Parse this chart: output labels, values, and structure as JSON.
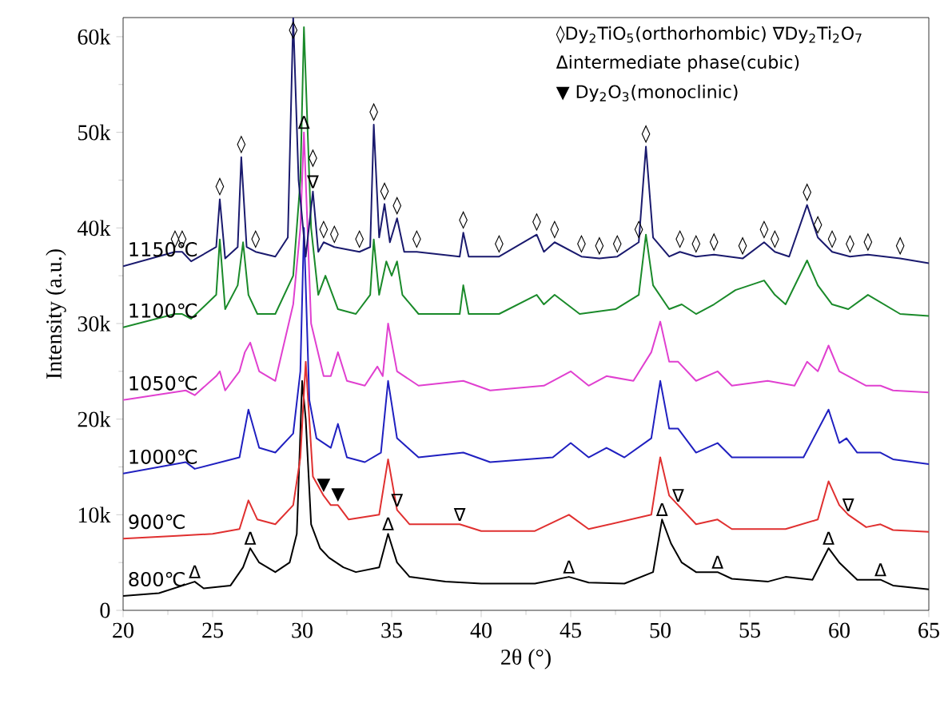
{
  "chart_data": {
    "type": "line",
    "xlabel": "2θ (°)",
    "ylabel": "Intensity (a.u.)",
    "xlim": [
      20,
      65
    ],
    "xticks": [
      20,
      25,
      30,
      35,
      40,
      45,
      50,
      55,
      60,
      65
    ],
    "ylim": [
      0,
      62000
    ],
    "yticks": [
      0,
      {
        "value": 10000,
        "label": "10k"
      },
      {
        "value": 20000,
        "label": "20k"
      },
      {
        "value": 30000,
        "label": "30k"
      },
      {
        "value": 40000,
        "label": "40k"
      },
      {
        "value": 50000,
        "label": "50k"
      },
      {
        "value": 60000,
        "label": "60k"
      }
    ],
    "grid": false,
    "legend": false,
    "marker": "none",
    "line_style": "solid",
    "series": [
      {
        "name": "800℃",
        "color": "#000000",
        "x": [
          20,
          22,
          24,
          24.5,
          26,
          26.7,
          27.1,
          27.6,
          28.5,
          29.3,
          29.7,
          30.0,
          30.2,
          30.5,
          31,
          31.5,
          32.3,
          33,
          34.3,
          34.8,
          35.3,
          36,
          38,
          40,
          43,
          44.9,
          46,
          48,
          49.6,
          50.1,
          50.6,
          51.2,
          52,
          53.2,
          54,
          56,
          57,
          58.5,
          59.4,
          60,
          61,
          62.3,
          63,
          65
        ],
        "values": [
          1500,
          1800,
          3000,
          2300,
          2600,
          4500,
          6500,
          5000,
          4000,
          5000,
          8000,
          24000,
          20000,
          9000,
          6500,
          5500,
          4500,
          4000,
          4500,
          8000,
          5000,
          3500,
          3000,
          2800,
          2800,
          3500,
          2900,
          2800,
          4000,
          9500,
          7000,
          5000,
          4000,
          4000,
          3300,
          3000,
          3500,
          3200,
          6500,
          5000,
          3200,
          3200,
          2600,
          2200
        ]
      },
      {
        "name": "900℃",
        "color": "#e03030",
        "x": [
          20,
          23,
          25,
          26.5,
          27,
          27.5,
          28.5,
          29.5,
          29.9,
          30.2,
          30.6,
          31.2,
          31.6,
          32,
          32.6,
          34.3,
          34.8,
          35.3,
          36,
          38.8,
          40,
          43,
          44.9,
          46,
          49.5,
          50,
          50.5,
          51,
          52,
          53.2,
          54,
          57,
          58.8,
          59.4,
          60,
          60.5,
          61.5,
          62.3,
          63,
          65
        ],
        "values": [
          7500,
          7800,
          8000,
          8500,
          11500,
          9500,
          9000,
          11000,
          16000,
          26000,
          14000,
          12000,
          11000,
          11000,
          9500,
          10000,
          15800,
          10500,
          9000,
          9000,
          8300,
          8300,
          10000,
          8500,
          10000,
          16000,
          12000,
          11000,
          9000,
          9500,
          8500,
          8500,
          9500,
          13500,
          11000,
          10000,
          8700,
          9000,
          8400,
          8200
        ]
      },
      {
        "name": "1000℃",
        "color": "#2020c0",
        "x": [
          20,
          23.5,
          24,
          26.5,
          27,
          27.6,
          28.5,
          29.5,
          29.9,
          30.1,
          30.4,
          30.8,
          31.2,
          31.6,
          32,
          32.5,
          33.5,
          34.4,
          34.8,
          35.3,
          36.5,
          39,
          40.5,
          44,
          45,
          46,
          47,
          48,
          49.5,
          50,
          50.5,
          51,
          52,
          53.2,
          54,
          58,
          59.4,
          60,
          60.4,
          61,
          62.3,
          63,
          65
        ],
        "values": [
          14300,
          15500,
          14800,
          16000,
          21000,
          17000,
          16500,
          18500,
          25000,
          40000,
          22000,
          18000,
          17500,
          17000,
          19500,
          16000,
          15500,
          16500,
          24000,
          18000,
          16000,
          16500,
          15500,
          16000,
          17500,
          16000,
          17000,
          16000,
          18000,
          24000,
          19000,
          19000,
          16500,
          17500,
          16000,
          16000,
          21000,
          17500,
          18000,
          16500,
          16500,
          15800,
          15300
        ]
      },
      {
        "name": "1050℃",
        "color": "#e040d0",
        "x": [
          20,
          23.5,
          24,
          25.2,
          25.4,
          25.7,
          26.5,
          26.8,
          27.1,
          27.6,
          28.5,
          29.5,
          29.9,
          30.1,
          30.5,
          31.2,
          31.6,
          32,
          32.5,
          33.5,
          34.2,
          34.5,
          34.8,
          35.3,
          36.5,
          39,
          40.5,
          43.5,
          45,
          46,
          47,
          48.5,
          49.5,
          50,
          50.5,
          51,
          52,
          53.2,
          54,
          56,
          57.5,
          58.2,
          58.8,
          59.4,
          60,
          60.5,
          61.5,
          62.3,
          63,
          65
        ],
        "values": [
          22000,
          23000,
          22500,
          24500,
          25000,
          23000,
          25000,
          27000,
          28000,
          25000,
          24000,
          32000,
          40000,
          50000,
          30000,
          24500,
          24500,
          27000,
          24000,
          23500,
          25500,
          24500,
          30000,
          25000,
          23500,
          24000,
          23000,
          23500,
          25000,
          23500,
          24500,
          24000,
          27000,
          30200,
          26000,
          26000,
          24000,
          25000,
          23500,
          24000,
          23500,
          26000,
          25000,
          27700,
          25000,
          24500,
          23500,
          23500,
          23000,
          22800
        ]
      },
      {
        "name": "1100℃",
        "color": "#1a8a2a",
        "x": [
          20,
          22.9,
          23.3,
          23.8,
          25.2,
          25.4,
          25.7,
          26.4,
          26.7,
          27,
          27.5,
          28.5,
          29.5,
          29.9,
          30.1,
          30.5,
          30.9,
          31.3,
          32,
          33,
          33.8,
          34.0,
          34.3,
          34.7,
          35.0,
          35.3,
          35.6,
          36.5,
          38.8,
          39,
          39.3,
          41,
          43.1,
          43.5,
          44.1,
          45.5,
          47.5,
          48.8,
          49.2,
          49.6,
          50.5,
          51.2,
          52,
          53,
          54.2,
          55.8,
          56.4,
          57,
          58.2,
          58.8,
          59.6,
          60.5,
          61.6,
          63.4,
          65
        ],
        "values": [
          29600,
          31000,
          31000,
          30500,
          33000,
          38800,
          31500,
          34000,
          38500,
          33000,
          31000,
          31000,
          35000,
          45000,
          61000,
          40000,
          33000,
          35000,
          31500,
          31000,
          33000,
          38800,
          33000,
          36500,
          35000,
          36500,
          33000,
          31000,
          31000,
          34000,
          31000,
          31000,
          33000,
          32000,
          33000,
          31000,
          31500,
          33000,
          39300,
          34000,
          31500,
          32000,
          31000,
          32000,
          33500,
          34500,
          33000,
          32000,
          36600,
          34000,
          32000,
          31500,
          33000,
          31000,
          30800
        ]
      },
      {
        "name": "1150℃",
        "color": "#1a1a6e",
        "x": [
          20,
          22.9,
          23.3,
          23.8,
          25.2,
          25.4,
          25.7,
          26.4,
          26.6,
          26.9,
          27.4,
          28.5,
          29.2,
          29.5,
          29.8,
          30.2,
          30.6,
          30.9,
          31.2,
          31.8,
          33.2,
          33.8,
          34.0,
          34.3,
          34.6,
          34.9,
          35.3,
          35.7,
          36.4,
          38.8,
          39.0,
          39.3,
          41.0,
          43.1,
          43.5,
          44.1,
          45.6,
          46.6,
          47.6,
          48.8,
          49.2,
          49.6,
          50.5,
          51.1,
          52.0,
          53.0,
          54.6,
          55.8,
          56.4,
          57.2,
          58.2,
          58.8,
          59.6,
          60.6,
          61.6,
          63.4,
          65
        ],
        "values": [
          36000,
          37500,
          37500,
          36500,
          38000,
          43000,
          36800,
          38000,
          47400,
          38000,
          37500,
          37000,
          39000,
          62000,
          45000,
          37000,
          43800,
          37500,
          38500,
          38000,
          37500,
          38000,
          50800,
          39000,
          42500,
          38500,
          41000,
          37500,
          37500,
          37000,
          39500,
          37000,
          37000,
          39300,
          37500,
          38500,
          37000,
          36800,
          37000,
          38500,
          48500,
          39000,
          37000,
          37500,
          37000,
          37200,
          36800,
          38500,
          37500,
          37000,
          42400,
          39000,
          37500,
          37000,
          37200,
          36800,
          36300
        ]
      }
    ],
    "annotations": [
      "◊Dy$_{2}$TiO$_{5}$(orthorhombic)  ∇Dy$_{2}$Ti$_{2}$O$_{7}$",
      "Δintermediate phase(cubic)",
      "▼ Dy$_{2}$O$_{3}$(monoclinic)",
      {
        "text": "◊",
        "x": 22.9,
        "y": 37500
      },
      {
        "text": "◊",
        "x": 23.3,
        "y": 37500
      },
      {
        "text": "◊",
        "x": 25.4,
        "y": 43000
      },
      {
        "text": "◊",
        "x": 26.6,
        "y": 47400
      },
      {
        "text": "◊",
        "x": 27.4,
        "y": 37500
      },
      {
        "text": "◊",
        "x": 29.5,
        "y": 62000
      },
      {
        "text": "∇",
        "x": 30.6,
        "y": 43800
      },
      {
        "text": "◊",
        "x": 30.6,
        "y": 43800
      },
      {
        "text": "◊",
        "x": 31.2,
        "y": 38500
      },
      {
        "text": "◊",
        "x": 31.8,
        "y": 38000
      },
      {
        "text": "◊",
        "x": 33.2,
        "y": 37500
      },
      {
        "text": "◊",
        "x": 34.0,
        "y": 50800
      },
      {
        "text": "◊",
        "x": 34.6,
        "y": 42500
      },
      {
        "text": "◊",
        "x": 35.3,
        "y": 41000
      },
      {
        "text": "◊",
        "x": 36.4,
        "y": 37500
      },
      {
        "text": "◊",
        "x": 39.0,
        "y": 39500
      },
      {
        "text": "◊",
        "x": 41.0,
        "y": 37000
      },
      {
        "text": "◊",
        "x": 43.1,
        "y": 39300
      },
      {
        "text": "◊",
        "x": 44.1,
        "y": 38500
      },
      {
        "text": "◊",
        "x": 45.6,
        "y": 37000
      },
      {
        "text": "◊",
        "x": 46.6,
        "y": 36800
      },
      {
        "text": "◊",
        "x": 47.6,
        "y": 37000
      },
      {
        "text": "◊",
        "x": 48.8,
        "y": 38500
      },
      {
        "text": "◊",
        "x": 49.2,
        "y": 48500
      },
      {
        "text": "◊",
        "x": 51.1,
        "y": 37500
      },
      {
        "text": "◊",
        "x": 52.0,
        "y": 37000
      },
      {
        "text": "◊",
        "x": 53.0,
        "y": 37200
      },
      {
        "text": "◊",
        "x": 54.6,
        "y": 36800
      },
      {
        "text": "◊",
        "x": 55.8,
        "y": 38500
      },
      {
        "text": "◊",
        "x": 56.4,
        "y": 37500
      },
      {
        "text": "◊",
        "x": 58.2,
        "y": 42400
      },
      {
        "text": "◊",
        "x": 58.8,
        "y": 39000
      },
      {
        "text": "◊",
        "x": 59.6,
        "y": 37500
      },
      {
        "text": "◊",
        "x": 60.6,
        "y": 37000
      },
      {
        "text": "◊",
        "x": 61.6,
        "y": 37200
      },
      {
        "text": "◊",
        "x": 63.4,
        "y": 36800
      },
      {
        "text": "∇",
        "x": 35.3,
        "y": 10500
      },
      {
        "text": "∇",
        "x": 38.8,
        "y": 9000
      },
      {
        "text": "∇",
        "x": 51,
        "y": 11000
      },
      {
        "text": "∇",
        "x": 60.5,
        "y": 10000
      },
      {
        "text": "Δ",
        "x": 30.1,
        "y": 50000
      },
      {
        "text": "Δ",
        "x": 24.0,
        "y": 3000
      },
      {
        "text": "Δ",
        "x": 27.1,
        "y": 6500
      },
      {
        "text": "Δ",
        "x": 34.8,
        "y": 8000
      },
      {
        "text": "Δ",
        "x": 44.9,
        "y": 3500
      },
      {
        "text": "Δ",
        "x": 50.1,
        "y": 9500
      },
      {
        "text": "Δ",
        "x": 53.2,
        "y": 4000
      },
      {
        "text": "Δ",
        "x": 59.4,
        "y": 6500
      },
      {
        "text": "Δ",
        "x": 62.3,
        "y": 3200
      },
      {
        "text": "▼",
        "x": 31.2,
        "y": 12000
      },
      {
        "text": "▼",
        "x": 32,
        "y": 11000
      }
    ]
  }
}
